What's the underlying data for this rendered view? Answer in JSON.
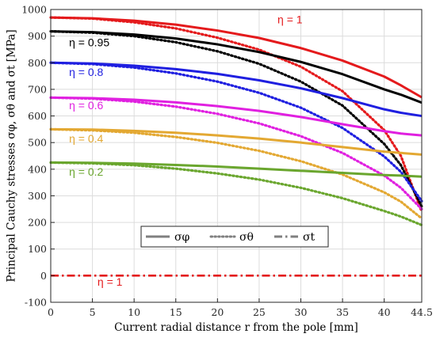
{
  "chart_data": {
    "type": "line",
    "xlabel": "Current radial distance r from the pole [mm]",
    "ylabel": "Principal Cauchy stresses σφ, σθ and σt [MPa]",
    "xlim": [
      0,
      44.5
    ],
    "ylim": [
      -100,
      1000
    ],
    "xticks": [
      "0",
      "5",
      "10",
      "15",
      "20",
      "25",
      "30",
      "35",
      "40",
      "44.5"
    ],
    "yticks": [
      "-100",
      "0",
      "100",
      "200",
      "300",
      "400",
      "500",
      "600",
      "700",
      "800",
      "900",
      "1000"
    ],
    "grid": true,
    "legend": {
      "placement": "lower-center",
      "entries": [
        {
          "label": "σφ",
          "style": "solid"
        },
        {
          "label": "σθ",
          "style": "dotted"
        },
        {
          "label": "σt",
          "style": "dashdot"
        }
      ]
    },
    "annotations": [
      {
        "text": "η = 1",
        "color": "#e41a1c",
        "x": 27.2,
        "y": 948
      },
      {
        "text": "η = 0.95",
        "color": "#000000",
        "x": 2.2,
        "y": 862
      },
      {
        "text": "η = 0.8",
        "color": "#1f1fe0",
        "x": 2.2,
        "y": 750
      },
      {
        "text": "η = 0.6",
        "color": "#e020e0",
        "x": 2.2,
        "y": 625
      },
      {
        "text": "η = 0.4",
        "color": "#e3a832",
        "x": 2.2,
        "y": 500
      },
      {
        "text": "η = 0.2",
        "color": "#6aa62e",
        "x": 2.2,
        "y": 375
      },
      {
        "text": "η = 1",
        "color": "#e41a1c",
        "x": 5.6,
        "y": -38
      }
    ],
    "x": [
      0,
      5,
      10,
      15,
      20,
      25,
      30,
      35,
      40,
      42,
      44.5
    ],
    "series": [
      {
        "eta": "1",
        "kind": "phi",
        "color": "#e41a1c",
        "values": [
          970,
          967,
          958,
          943,
          921,
          893,
          855,
          808,
          748,
          715,
          670
        ]
      },
      {
        "eta": "1",
        "kind": "theta",
        "color": "#e41a1c",
        "values": [
          970,
          966,
          952,
          929,
          894,
          849,
          785,
          693,
          547,
          450,
          240
        ]
      },
      {
        "eta": "0.95",
        "kind": "phi",
        "color": "#000000",
        "values": [
          918,
          915,
          906,
          891,
          869,
          840,
          803,
          757,
          700,
          680,
          650
        ]
      },
      {
        "eta": "0.95",
        "kind": "theta",
        "color": "#000000",
        "values": [
          918,
          913,
          900,
          877,
          843,
          796,
          729,
          639,
          495,
          415,
          260
        ]
      },
      {
        "eta": "0.8",
        "kind": "phi",
        "color": "#1f1fe0",
        "values": [
          800,
          797,
          789,
          776,
          758,
          734,
          704,
          667,
          625,
          612,
          600
        ]
      },
      {
        "eta": "0.8",
        "kind": "theta",
        "color": "#1f1fe0",
        "values": [
          800,
          795,
          782,
          760,
          729,
          687,
          631,
          555,
          448,
          390,
          280
        ]
      },
      {
        "eta": "0.6",
        "kind": "phi",
        "color": "#e020e0",
        "values": [
          669,
          667,
          661,
          651,
          637,
          619,
          596,
          569,
          543,
          534,
          527
        ]
      },
      {
        "eta": "0.6",
        "kind": "theta",
        "color": "#e020e0",
        "values": [
          669,
          665,
          654,
          635,
          608,
          572,
          524,
          461,
          376,
          330,
          250
        ]
      },
      {
        "eta": "0.4",
        "kind": "phi",
        "color": "#e3a832",
        "values": [
          550,
          549,
          544,
          537,
          527,
          515,
          500,
          483,
          466,
          461,
          455
        ]
      },
      {
        "eta": "0.4",
        "kind": "theta",
        "color": "#e3a832",
        "values": [
          550,
          546,
          537,
          521,
          499,
          469,
          430,
          380,
          313,
          278,
          215
        ]
      },
      {
        "eta": "0.2",
        "kind": "phi",
        "color": "#6aa62e",
        "values": [
          425,
          424,
          421,
          416,
          410,
          402,
          394,
          386,
          378,
          376,
          372
        ]
      },
      {
        "eta": "0.2",
        "kind": "theta",
        "color": "#6aa62e",
        "values": [
          425,
          422,
          415,
          402,
          384,
          361,
          330,
          291,
          243,
          222,
          190
        ]
      },
      {
        "eta": "1",
        "kind": "t",
        "color": "#e41a1c",
        "values": [
          0,
          0,
          0,
          0,
          0,
          0,
          0,
          0,
          0,
          0,
          0
        ]
      }
    ]
  }
}
